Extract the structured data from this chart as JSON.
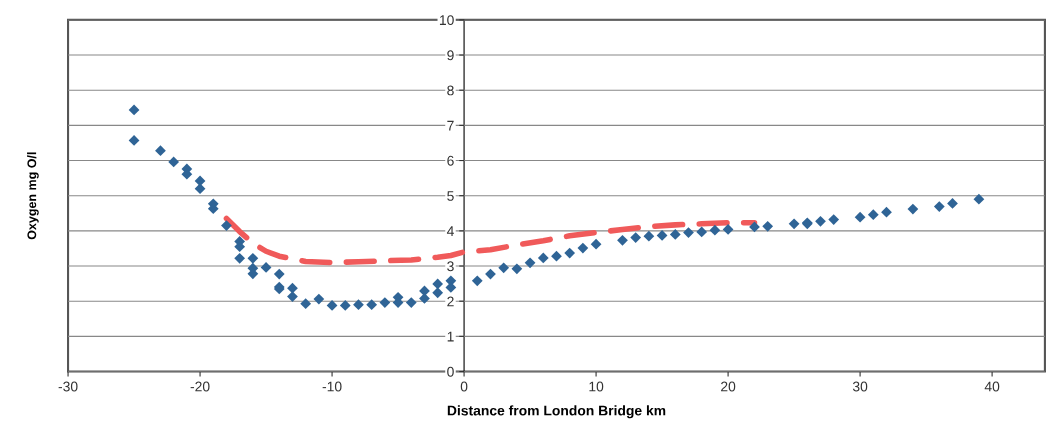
{
  "chart_data": {
    "type": "scatter",
    "xlabel": "Distance from London Bridge km",
    "ylabel": "Oxygen mg O/l",
    "xlim": [
      -30,
      44
    ],
    "xticks": [
      -30,
      -20,
      -10,
      0,
      10,
      20,
      30,
      40
    ],
    "ylim": [
      0,
      10
    ],
    "yticks": [
      0,
      1,
      2,
      3,
      4,
      5,
      6,
      7,
      8,
      9,
      10
    ],
    "grid": "y",
    "series": [
      {
        "color": "#2f6496",
        "marker": "diamond",
        "x": [
          -25,
          -25,
          -23,
          -22,
          -21,
          -21,
          -20,
          -20,
          -19,
          -19,
          -18,
          -17,
          -17,
          -17,
          -16,
          -16,
          -16,
          -15,
          -14,
          -14,
          -14,
          -13,
          -13,
          -12,
          -11,
          -10,
          -9,
          -8,
          -7,
          -6,
          -5,
          -5,
          -4,
          -3,
          -3,
          -2,
          -2,
          -1,
          -1,
          1,
          2,
          3,
          4,
          5,
          6,
          7,
          8,
          9,
          10,
          12,
          13,
          14,
          15,
          16,
          17,
          18,
          19,
          20,
          22,
          23,
          25,
          26,
          26,
          27,
          28,
          30,
          31,
          32,
          34,
          36,
          37,
          39
        ],
        "values": [
          7.44,
          6.57,
          6.28,
          5.96,
          5.76,
          5.61,
          5.42,
          5.2,
          4.77,
          4.63,
          4.15,
          3.7,
          3.55,
          3.22,
          3.22,
          2.94,
          2.78,
          2.96,
          2.77,
          2.4,
          2.35,
          2.37,
          2.13,
          1.93,
          2.06,
          1.88,
          1.88,
          1.9,
          1.9,
          1.96,
          2.11,
          1.96,
          1.96,
          2.29,
          2.08,
          2.49,
          2.24,
          2.58,
          2.39,
          2.58,
          2.77,
          2.95,
          2.92,
          3.09,
          3.23,
          3.28,
          3.37,
          3.51,
          3.62,
          3.73,
          3.81,
          3.85,
          3.87,
          3.9,
          3.95,
          3.97,
          4.02,
          4.04,
          4.11,
          4.13,
          4.2,
          4.2,
          4.23,
          4.27,
          4.32,
          4.39,
          4.46,
          4.53,
          4.62,
          4.69,
          4.78,
          4.9
        ]
      },
      {
        "type": "line",
        "color": "#f05a5a",
        "marker": "none",
        "line_style": "dashed",
        "x": [
          -18,
          -17,
          -16,
          -15,
          -14,
          -13,
          -12,
          -10,
          -8,
          -6,
          -4,
          -2,
          -1,
          0,
          2,
          4,
          6,
          8,
          10,
          12,
          14,
          16,
          18,
          20,
          22
        ],
        "values": [
          4.35,
          3.98,
          3.65,
          3.42,
          3.28,
          3.2,
          3.13,
          3.1,
          3.12,
          3.15,
          3.17,
          3.25,
          3.3,
          3.4,
          3.46,
          3.6,
          3.72,
          3.86,
          3.95,
          4.04,
          4.12,
          4.17,
          4.2,
          4.23,
          4.23
        ]
      }
    ]
  }
}
